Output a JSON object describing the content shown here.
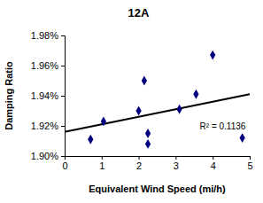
{
  "chart_data": {
    "type": "scatter",
    "title": "12A",
    "x_label": "Equivalent Wind Speed (mi/h)",
    "y_label": "Damping Ratio",
    "x": [
      0.7,
      1.05,
      2.0,
      2.15,
      2.25,
      2.25,
      3.1,
      3.55,
      4.0,
      4.8
    ],
    "values": [
      1.911,
      1.923,
      1.93,
      1.95,
      1.915,
      1.908,
      1.931,
      1.941,
      1.967,
      1.912
    ],
    "color": "#000080",
    "marker": "diamond",
    "trendline": {
      "x": [
        0,
        5
      ],
      "values": [
        1.916,
        1.941
      ],
      "color": "#000000"
    },
    "annotations": [
      "R² = 0.1136"
    ],
    "xlim": [
      0,
      5
    ],
    "xticks": [
      0,
      1,
      2,
      3,
      4,
      5
    ],
    "ylim": [
      1.9,
      1.98
    ],
    "yticks": [
      {
        "value": 1.9,
        "label": "1.90%"
      },
      {
        "value": 1.92,
        "label": "1.92%"
      },
      {
        "value": 1.94,
        "label": "1.94%"
      },
      {
        "value": 1.96,
        "label": "1.96%"
      },
      {
        "value": 1.98,
        "label": "1.98%"
      }
    ],
    "grid": false
  }
}
